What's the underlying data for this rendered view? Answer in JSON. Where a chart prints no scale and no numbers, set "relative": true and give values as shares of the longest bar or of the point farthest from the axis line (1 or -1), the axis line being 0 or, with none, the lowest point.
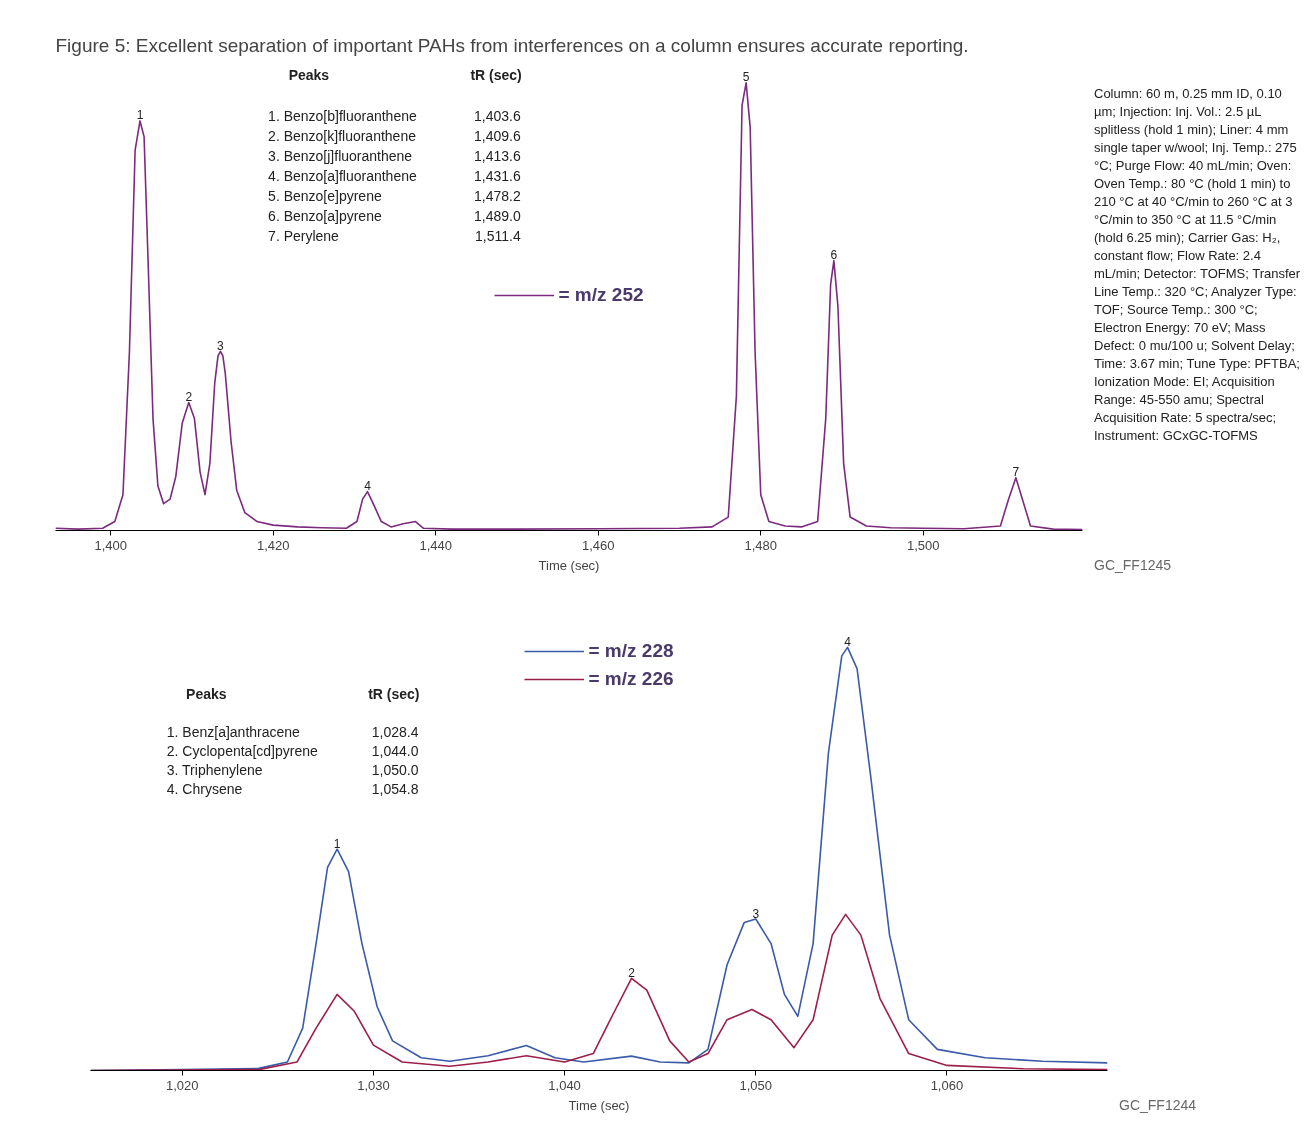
{
  "chart_data": [
    {
      "type": "line",
      "title": "Figure 5: Excellent separation of important PAHs from interferences on a column ensures accurate reporting.",
      "xlabel": "Time (sec)",
      "relative": true,
      "legend": "center",
      "grid": false,
      "xlim": [
        1393.2,
        1519.6
      ],
      "xticks": [
        {
          "value": 1400,
          "label": "1,400"
        },
        {
          "value": 1420,
          "label": "1,420"
        },
        {
          "value": 1440,
          "label": "1,440"
        },
        {
          "value": 1460,
          "label": "1,460"
        },
        {
          "value": 1480,
          "label": "1,480"
        },
        {
          "value": 1500,
          "label": "1,500"
        }
      ],
      "series": [
        {
          "name": "= m/z 252",
          "color": "#7b2a7e",
          "x": [
            1393.2,
            1396,
            1399,
            1400.5,
            1401.5,
            1402.3,
            1403,
            1403.6,
            1404.1,
            1404.6,
            1405.2,
            1405.8,
            1406.5,
            1407.3,
            1408,
            1408.8,
            1409.6,
            1410.3,
            1411,
            1411.6,
            1412.2,
            1412.8,
            1413.2,
            1413.5,
            1413.8,
            1414.1,
            1414.8,
            1415.5,
            1416.5,
            1418,
            1420,
            1423,
            1426,
            1429,
            1430.3,
            1431,
            1431.6,
            1432.3,
            1433.3,
            1434.5,
            1436,
            1437.5,
            1438.5,
            1442,
            1450,
            1460,
            1470,
            1474,
            1476,
            1477,
            1477.7,
            1478.2,
            1478.7,
            1479.3,
            1480,
            1481,
            1483,
            1485,
            1487,
            1488,
            1488.6,
            1489.0,
            1489.5,
            1490.2,
            1491,
            1493,
            1496,
            1500,
            1505,
            1509.5,
            1510.5,
            1511.4,
            1512.2,
            1513.2,
            1516,
            1519.6
          ],
          "values": [
            0.005,
            0.003,
            0.005,
            0.02,
            0.08,
            0.4,
            0.85,
            0.915,
            0.88,
            0.6,
            0.25,
            0.1,
            0.06,
            0.07,
            0.12,
            0.24,
            0.286,
            0.25,
            0.13,
            0.08,
            0.15,
            0.33,
            0.39,
            0.4,
            0.39,
            0.35,
            0.2,
            0.09,
            0.04,
            0.02,
            0.012,
            0.008,
            0.006,
            0.005,
            0.02,
            0.07,
            0.087,
            0.06,
            0.02,
            0.008,
            0.015,
            0.02,
            0.005,
            0.003,
            0.003,
            0.004,
            0.005,
            0.008,
            0.03,
            0.3,
            0.95,
            1.0,
            0.9,
            0.4,
            0.08,
            0.02,
            0.01,
            0.008,
            0.02,
            0.25,
            0.55,
            0.603,
            0.5,
            0.15,
            0.03,
            0.01,
            0.006,
            0.005,
            0.004,
            0.01,
            0.07,
            0.118,
            0.07,
            0.01,
            0.003,
            0.002
          ]
        }
      ],
      "annotations": [
        "Peaks",
        "tR (sec)",
        "1.  Benzo[b]fluoranthene",
        "1,403.6",
        "2.  Benzo[k]fluoranthene",
        "1,409.6",
        "3.  Benzo[j]fluoranthene",
        "1,413.6",
        "4.  Benzo[a]fluoranthene",
        "1,431.6",
        "5.  Benzo[e]pyrene",
        "1,478.2",
        "6.  Benzo[a]pyrene",
        "1,489.0",
        "7.  Perylene",
        "1,511.4",
        "Column: 60 m, 0.25 mm ID, 0.10 µm; Injection: Inj. Vol.: 2.5 µL splitless (hold 1 min); Liner: 4 mm single taper w/wool; Inj. Temp.: 275 °C; Purge Flow: 40 mL/min; Oven: Oven Temp.: 80 °C (hold 1 min) to 210 °C at 40 °C/min to 260 °C at 3 °C/min to 350 °C at 11.5 °C/min (hold 6.25 min); Carrier Gas: H₂, constant flow; Flow Rate: 2.4 mL/min; Detector: TOFMS; Transfer Line Temp.: 320 °C; Analyzer Type: TOF; Source Temp.: 300 °C; Electron Energy: 70 eV; Mass Defect: 0 mu/100 u; Solvent Delay; Time: 3.67 min; Tune Type: PFTBA; Ionization Mode: EI; Acquisition Range: 45-550 amu; Spectral Acquisition Rate: 5 spectra/sec; Instrument: GCxGC-TOFMS",
        "GC_FF1245",
        {
          "text": "1",
          "x": 1403.6,
          "y": 0.915
        },
        {
          "text": "2",
          "x": 1409.6,
          "y": 0.286
        },
        {
          "text": "3",
          "x": 1413.5,
          "y": 0.4
        },
        {
          "text": "4",
          "x": 1431.6,
          "y": 0.087
        },
        {
          "text": "5",
          "x": 1478.2,
          "y": 1.0
        },
        {
          "text": "6",
          "x": 1489.0,
          "y": 0.603
        },
        {
          "text": "7",
          "x": 1511.4,
          "y": 0.118
        }
      ]
    },
    {
      "type": "line",
      "xlabel": "Time (sec)",
      "relative": true,
      "legend": "top",
      "grid": false,
      "xlim": [
        1015.2,
        1068.4
      ],
      "xticks": [
        {
          "value": 1020,
          "label": "1,020"
        },
        {
          "value": 1030,
          "label": "1,030"
        },
        {
          "value": 1040,
          "label": "1,040"
        },
        {
          "value": 1050,
          "label": "1,050"
        },
        {
          "value": 1060,
          "label": "1,060"
        }
      ],
      "series": [
        {
          "name": "= m/z 228",
          "color": "#3a5ba8",
          "x": [
            1015.2,
            1020,
            1024,
            1025.5,
            1026.3,
            1027,
            1027.6,
            1028.1,
            1028.7,
            1029.4,
            1030.2,
            1031,
            1032.5,
            1034,
            1036,
            1038,
            1039.5,
            1041,
            1043.5,
            1045,
            1046.5,
            1047.5,
            1048.5,
            1049.4,
            1050,
            1050.8,
            1051.5,
            1052.2,
            1053,
            1053.8,
            1054.5,
            1054.8,
            1055.3,
            1056,
            1057,
            1058,
            1059.5,
            1062,
            1065,
            1068.4
          ],
          "values": [
            0.0,
            0.002,
            0.005,
            0.02,
            0.1,
            0.3,
            0.48,
            0.523,
            0.47,
            0.3,
            0.15,
            0.07,
            0.03,
            0.022,
            0.035,
            0.059,
            0.03,
            0.02,
            0.034,
            0.02,
            0.018,
            0.05,
            0.25,
            0.35,
            0.358,
            0.3,
            0.18,
            0.128,
            0.3,
            0.75,
            0.98,
            1.0,
            0.95,
            0.7,
            0.32,
            0.12,
            0.05,
            0.03,
            0.022,
            0.018
          ]
        },
        {
          "name": "= m/z 226",
          "color": "#9c1f4a",
          "x": [
            1015.2,
            1024,
            1026,
            1027,
            1028.1,
            1029,
            1030,
            1031.5,
            1034,
            1036,
            1038,
            1040,
            1041.5,
            1042.5,
            1043.5,
            1044.3,
            1045.5,
            1046.5,
            1047.5,
            1048.5,
            1049.8,
            1050.8,
            1052,
            1053,
            1054,
            1054.7,
            1055.5,
            1056.5,
            1058,
            1060,
            1064,
            1068.4
          ],
          "values": [
            0.0,
            0.002,
            0.02,
            0.1,
            0.18,
            0.14,
            0.06,
            0.02,
            0.01,
            0.02,
            0.035,
            0.02,
            0.04,
            0.13,
            0.218,
            0.19,
            0.07,
            0.02,
            0.04,
            0.12,
            0.144,
            0.12,
            0.054,
            0.12,
            0.32,
            0.369,
            0.32,
            0.17,
            0.04,
            0.012,
            0.004,
            0.002
          ]
        }
      ],
      "annotations": [
        "Peaks",
        "tR (sec)",
        "1.  Benz[a]anthracene",
        "1,028.4",
        "2.  Cyclopenta[cd]pyrene",
        "1,044.0",
        "3.  Triphenylene",
        "1,050.0",
        "4.  Chrysene",
        "1,054.8",
        "GC_FF1244",
        {
          "text": "1",
          "x": 1028.1,
          "y": 0.523
        },
        {
          "text": "2",
          "x": 1043.5,
          "y": 0.218
        },
        {
          "text": "3",
          "x": 1050.0,
          "y": 0.358
        },
        {
          "text": "4",
          "x": 1054.8,
          "y": 1.0
        }
      ]
    }
  ]
}
